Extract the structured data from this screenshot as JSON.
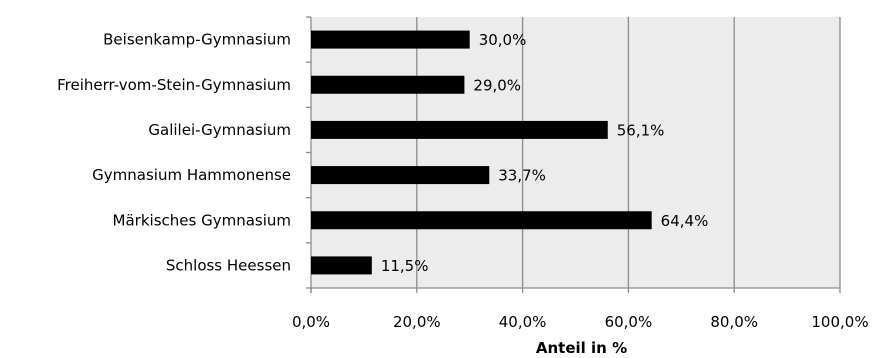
{
  "chart_data": {
    "type": "bar",
    "orientation": "horizontal",
    "categories": [
      "Beisenkamp-Gymnasium",
      "Freiherr-vom-Stein-Gymnasium",
      "Galilei-Gymnasium",
      "Gymnasium Hammonense",
      "Märkisches Gymnasium",
      "Schloss Heessen"
    ],
    "values": [
      30.0,
      29.0,
      56.1,
      33.7,
      64.4,
      11.5
    ],
    "data_labels": [
      "30,0%",
      "29,0%",
      "56,1%",
      "33,7%",
      "64,4%",
      "11,5%"
    ],
    "xlabel": "Anteil in %",
    "ylabel": "",
    "xlim": [
      0,
      100
    ],
    "x_ticks": [
      0,
      20,
      40,
      60,
      80,
      100
    ],
    "x_tick_labels": [
      "0,0%",
      "20,0%",
      "40,0%",
      "60,0%",
      "80,0%",
      "100,0%"
    ],
    "grid": "vertical",
    "legend": "none",
    "colors": {
      "bar": "#000000",
      "plot_background": "#ececec",
      "grid": "#8c8c8c",
      "axis": "#8c8c8c"
    }
  }
}
